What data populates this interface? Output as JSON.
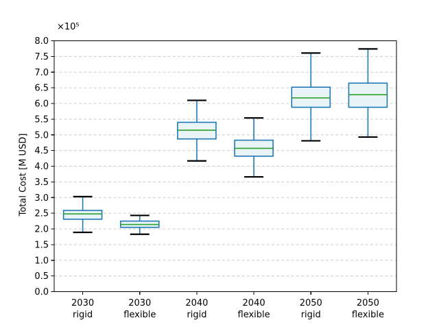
{
  "figure": {
    "background": "#ffffff"
  },
  "chart_data": {
    "type": "boxplot",
    "title": "",
    "xlabel": "",
    "ylabel": "Total Cost [M USD]",
    "y_offset_text": "×10⁵",
    "y_axis": {
      "min": 0.0,
      "max": 8.0,
      "tick_step": 0.5,
      "unit_multiplier": "1e5"
    },
    "grid": {
      "horizontal": true,
      "vertical": false,
      "style": "dashed"
    },
    "legend": "none",
    "categories": [
      {
        "line1": "2030",
        "line2": "rigid"
      },
      {
        "line1": "2030",
        "line2": "flexible"
      },
      {
        "line1": "2040",
        "line2": "rigid"
      },
      {
        "line1": "2040",
        "line2": "flexible"
      },
      {
        "line1": "2050",
        "line2": "rigid"
      },
      {
        "line1": "2050",
        "line2": "flexible"
      }
    ],
    "series": [
      {
        "label": "2030 rigid",
        "whisker_low": 1.89,
        "q1": 2.31,
        "median": 2.48,
        "q3": 2.59,
        "whisker_high": 3.03
      },
      {
        "label": "2030 flexible",
        "whisker_low": 1.83,
        "q1": 2.05,
        "median": 2.14,
        "q3": 2.25,
        "whisker_high": 2.43
      },
      {
        "label": "2040 rigid",
        "whisker_low": 4.17,
        "q1": 4.87,
        "median": 5.15,
        "q3": 5.4,
        "whisker_high": 6.1
      },
      {
        "label": "2040 flexible",
        "whisker_low": 3.66,
        "q1": 4.32,
        "median": 4.57,
        "q3": 4.83,
        "whisker_high": 5.54
      },
      {
        "label": "2050 rigid",
        "whisker_low": 4.81,
        "q1": 5.88,
        "median": 6.18,
        "q3": 6.52,
        "whisker_high": 7.61
      },
      {
        "label": "2050 flexible",
        "whisker_low": 4.93,
        "q1": 5.88,
        "median": 6.28,
        "q3": 6.65,
        "whisker_high": 7.74
      }
    ],
    "colors": {
      "box_edge": "#1f77b4",
      "whisker": "#1f77b4",
      "cap": "#000000",
      "median": "#2ca02c",
      "box_fill": "#e9f4f9",
      "grid": "#cccccc",
      "axis": "#000000"
    }
  }
}
